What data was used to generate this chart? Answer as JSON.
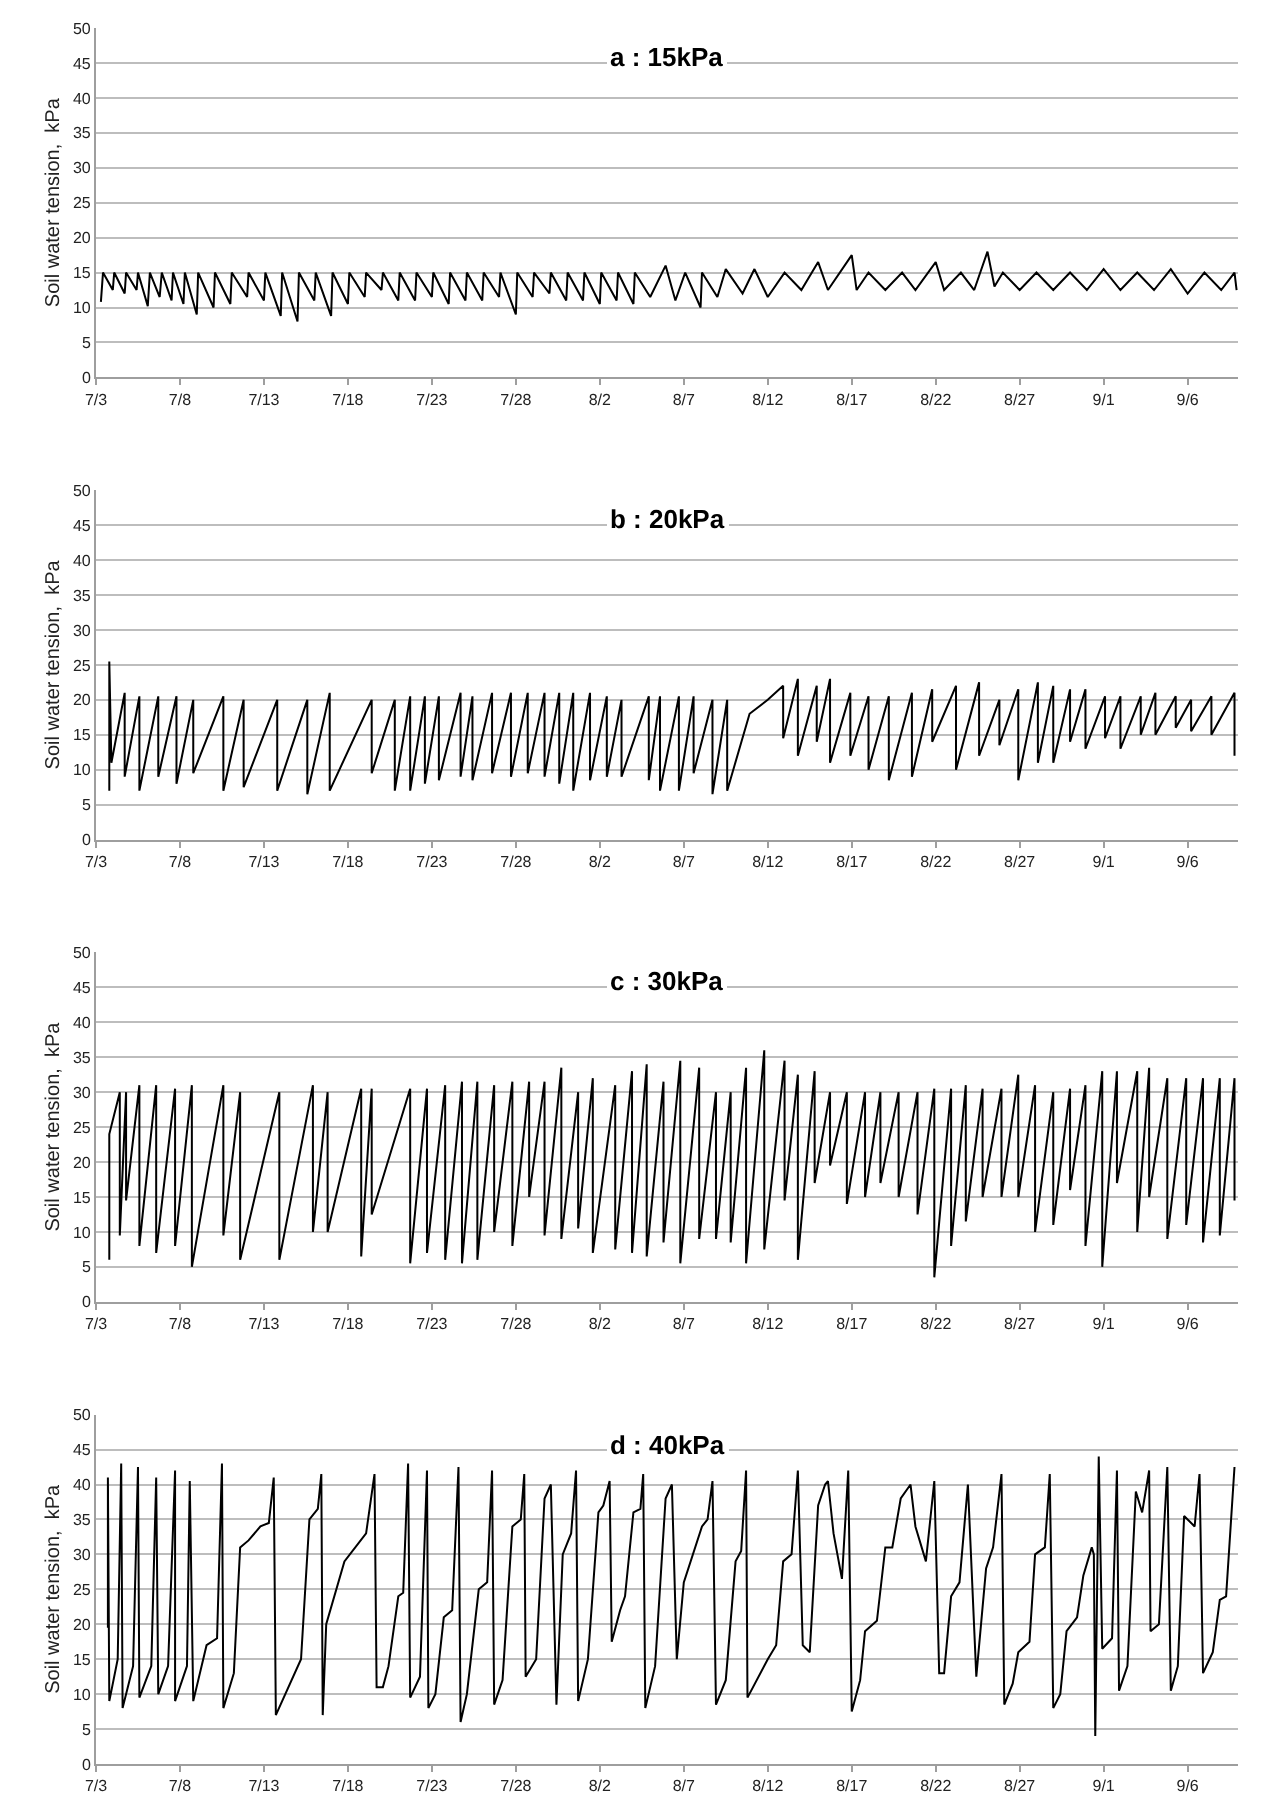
{
  "chart_data": [
    {
      "type": "line",
      "title": "a : 15kPa",
      "ylabel": "Soil water tension,  kPa",
      "xlim": [
        "--07-03",
        "--09-09"
      ],
      "ylim": [
        0,
        50
      ],
      "grid": "y",
      "xticks": [
        {
          "value": "--07-03",
          "label": "7/3"
        },
        {
          "value": "--07-08",
          "label": "7/8"
        },
        {
          "value": "--07-13",
          "label": "7/13"
        },
        {
          "value": "--07-18",
          "label": "7/18"
        },
        {
          "value": "--07-23",
          "label": "7/23"
        },
        {
          "value": "--07-28",
          "label": "7/28"
        },
        {
          "value": "--08-02",
          "label": "8/2"
        },
        {
          "value": "--08-07",
          "label": "8/7"
        },
        {
          "value": "--08-12",
          "label": "8/12"
        },
        {
          "value": "--08-17",
          "label": "8/17"
        },
        {
          "value": "--08-22",
          "label": "8/22"
        },
        {
          "value": "--08-27",
          "label": "8/27"
        },
        {
          "value": "--09-01",
          "label": "9/1"
        },
        {
          "value": "--09-06",
          "label": "9/6"
        }
      ],
      "yticks": [
        0,
        5,
        10,
        15,
        20,
        25,
        30,
        35,
        40,
        45,
        50
      ],
      "x": [
        "--07-03T07:00",
        "--07-03T10:00",
        "--07-04T00:00",
        "--07-04T02:00",
        "--07-04T17:00",
        "--07-04T19:00",
        "--07-05T10:00",
        "--07-05T12:00",
        "--07-06T02:00",
        "--07-06T05:00",
        "--07-06T19:00",
        "--07-06T22:00",
        "--07-07T12:00",
        "--07-07T14:00",
        "--07-08T05:00",
        "--07-08T07:00",
        "--07-09T00:00",
        "--07-09T02:00",
        "--07-10T00:00",
        "--07-10T02:00",
        "--07-11T00:00",
        "--07-11T02:00",
        "--07-12T00:00",
        "--07-12T02:00",
        "--07-13T00:00",
        "--07-13T02:00",
        "--07-14T00:00",
        "--07-14T02:00",
        "--07-15T00:00",
        "--07-15T02:00",
        "--07-16T00:00",
        "--07-16T02:00",
        "--07-17T00:00",
        "--07-17T02:00",
        "--07-18T00:00",
        "--07-18T02:00",
        "--07-19T00:00",
        "--07-19T02:00",
        "--07-20T00:00",
        "--07-20T02:00",
        "--07-21T00:00",
        "--07-21T02:00",
        "--07-22T00:00",
        "--07-22T02:00",
        "--07-23T00:00",
        "--07-23T02:00",
        "--07-24T00:00",
        "--07-24T02:00",
        "--07-25T00:00",
        "--07-25T02:00",
        "--07-26T00:00",
        "--07-26T02:00",
        "--07-27T00:00",
        "--07-27T02:00",
        "--07-28T00:00",
        "--07-28T02:00",
        "--07-29T00:00",
        "--07-29T02:00",
        "--07-30T00:00",
        "--07-30T02:00",
        "--07-31T00:00",
        "--07-31T02:00",
        "--08-01T00:00",
        "--08-01T02:00",
        "--08-02T00:00",
        "--08-02T02:00",
        "--08-03T00:00",
        "--08-03T02:00",
        "--08-04T00:00",
        "--08-04T02:00",
        "--08-05T00:00",
        "--08-05T22:00",
        "--08-06T12:00",
        "--08-07T02:00",
        "--08-08T00:00",
        "--08-08T02:00",
        "--08-09T00:00",
        "--08-09T12:00",
        "--08-10T12:00",
        "--08-11T05:00",
        "--08-12T00:00",
        "--08-13T00:00",
        "--08-14T00:00",
        "--08-15T00:00",
        "--08-15T14:00",
        "--08-17T00:00",
        "--08-17T07:00",
        "--08-18T00:00",
        "--08-19T00:00",
        "--08-20T00:00",
        "--08-20T19:00",
        "--08-22T00:00",
        "--08-22T12:00",
        "--08-23T12:00",
        "--08-24T07:00",
        "--08-25T02:00",
        "--08-25T12:00",
        "--08-26T00:00",
        "--08-27T00:00",
        "--08-28T00:00",
        "--08-29T00:00",
        "--08-30T00:00",
        "--08-31T00:00",
        "--09-01T00:00",
        "--09-02T00:00",
        "--09-03T00:00",
        "--09-04T00:00",
        "--09-05T00:00",
        "--09-06T00:00",
        "--09-07T00:00",
        "--09-08T00:00",
        "--09-08T19:00",
        "--09-08T22:00"
      ],
      "series": [
        {
          "color": "#000000",
          "values": [
            10.8,
            15,
            12.5,
            15,
            12,
            15,
            12.5,
            15,
            10.2,
            15,
            11.5,
            15,
            11,
            15,
            10.5,
            15,
            9,
            15,
            10,
            15,
            10.5,
            15,
            11.5,
            15,
            11,
            15,
            8.8,
            15,
            8,
            15,
            11,
            15,
            8.8,
            15,
            10.5,
            15,
            11.5,
            15,
            12.5,
            15,
            11,
            15,
            11,
            15,
            11.5,
            15,
            10.5,
            15,
            11,
            15,
            11,
            15,
            11.5,
            15,
            9,
            15,
            11.5,
            15,
            12,
            15,
            11,
            15,
            11,
            15,
            10.5,
            15,
            11,
            15,
            10.5,
            15,
            11.5,
            16,
            11,
            15,
            10,
            15,
            11.5,
            15.5,
            12,
            15.5,
            11.5,
            15,
            12.5,
            16.5,
            12.5,
            17.5,
            12.5,
            15,
            12.5,
            15,
            12.5,
            16.5,
            12.5,
            15,
            12.5,
            18,
            13,
            15,
            12.5,
            15,
            12.5,
            15,
            12.5,
            15.5,
            12.5,
            15,
            12.5,
            15.5,
            12,
            15,
            12.5,
            15,
            12.5
          ]
        }
      ]
    },
    {
      "type": "line",
      "title": "b : 20kPa",
      "ylabel": "Soil water tension,  kPa",
      "xlim": [
        "--07-03",
        "--09-09"
      ],
      "ylim": [
        0,
        50
      ],
      "grid": "y",
      "xticks": [
        {
          "value": "--07-03",
          "label": "7/3"
        },
        {
          "value": "--07-08",
          "label": "7/8"
        },
        {
          "value": "--07-13",
          "label": "7/13"
        },
        {
          "value": "--07-18",
          "label": "7/18"
        },
        {
          "value": "--07-23",
          "label": "7/23"
        },
        {
          "value": "--07-28",
          "label": "7/28"
        },
        {
          "value": "--08-02",
          "label": "8/2"
        },
        {
          "value": "--08-07",
          "label": "8/7"
        },
        {
          "value": "--08-12",
          "label": "8/12"
        },
        {
          "value": "--08-17",
          "label": "8/17"
        },
        {
          "value": "--08-22",
          "label": "8/22"
        },
        {
          "value": "--08-27",
          "label": "8/27"
        },
        {
          "value": "--09-01",
          "label": "9/1"
        },
        {
          "value": "--09-06",
          "label": "9/6"
        }
      ],
      "yticks": [
        0,
        5,
        10,
        15,
        20,
        25,
        30,
        35,
        40,
        45,
        50
      ],
      "x": [
        "--07-03T19:00",
        "--07-03T19:00",
        "--07-03T22:00",
        "--07-04T17:00",
        "--07-04T17:00",
        "--07-05T14:00",
        "--07-05T14:00",
        "--07-06T17:00",
        "--07-06T17:00",
        "--07-07T19:00",
        "--07-07T19:00",
        "--07-08T19:00",
        "--07-08T19:00",
        "--07-10T14:00",
        "--07-10T14:00",
        "--07-11T19:00",
        "--07-11T19:00",
        "--07-13T19:00",
        "--07-13T19:00",
        "--07-15T14:00",
        "--07-15T14:00",
        "--07-16T22:00",
        "--07-16T22:00",
        "--07-19T10:00",
        "--07-19T10:00",
        "--07-20T19:00",
        "--07-20T19:00",
        "--07-21T17:00",
        "--07-21T17:00",
        "--07-22T14:00",
        "--07-22T14:00",
        "--07-23T10:00",
        "--07-23T10:00",
        "--07-24T17:00",
        "--07-24T17:00",
        "--07-25T10:00",
        "--07-25T10:00",
        "--07-26T14:00",
        "--07-26T14:00",
        "--07-27T17:00",
        "--07-27T17:00",
        "--07-28T17:00",
        "--07-28T17:00",
        "--07-29T17:00",
        "--07-29T17:00",
        "--07-30T14:00",
        "--07-30T14:00",
        "--07-31T10:00",
        "--07-31T10:00",
        "--08-01T10:00",
        "--08-01T10:00",
        "--08-02T10:00",
        "--08-02T10:00",
        "--08-03T07:00",
        "--08-03T07:00",
        "--08-04T22:00",
        "--08-04T22:00",
        "--08-05T14:00",
        "--08-05T14:00",
        "--08-06T17:00",
        "--08-06T17:00",
        "--08-07T14:00",
        "--08-07T14:00",
        "--08-08T17:00",
        "--08-08T17:00",
        "--08-09T14:00",
        "--08-09T14:00",
        "--08-10T22:00",
        "--08-12T00:00",
        "--08-12T22:00",
        "--08-12T22:00",
        "--08-13T19:00",
        "--08-13T19:00",
        "--08-14T22:00",
        "--08-14T22:00",
        "--08-15T17:00",
        "--08-15T17:00",
        "--08-16T22:00",
        "--08-16T22:00",
        "--08-18T00:00",
        "--08-18T00:00",
        "--08-19T05:00",
        "--08-19T05:00",
        "--08-20T14:00",
        "--08-20T14:00",
        "--08-21T19:00",
        "--08-21T19:00",
        "--08-23T05:00",
        "--08-23T05:00",
        "--08-24T14:00",
        "--08-24T14:00",
        "--08-25T19:00",
        "--08-25T19:00",
        "--08-26T22:00",
        "--08-26T22:00",
        "--08-28T02:00",
        "--08-28T02:00",
        "--08-29T00:00",
        "--08-29T00:00",
        "--08-30T00:00",
        "--08-30T00:00",
        "--08-30T22:00",
        "--08-30T22:00",
        "--09-01T02:00",
        "--09-01T02:00",
        "--09-02T00:00",
        "--09-02T00:00",
        "--09-03T05:00",
        "--09-03T05:00",
        "--09-04T02:00",
        "--09-04T02:00",
        "--09-05T07:00",
        "--09-05T07:00",
        "--09-06T05:00",
        "--09-06T05:00",
        "--09-07T10:00",
        "--09-07T10:00",
        "--09-08T19:00",
        "--09-08T19:00"
      ],
      "series": [
        {
          "color": "#000000",
          "values": [
            7,
            25.5,
            11,
            21,
            9,
            20.5,
            7,
            20.5,
            9,
            20.5,
            8,
            20,
            9.5,
            20.5,
            7,
            20,
            7.5,
            20,
            7,
            20,
            6.5,
            21,
            7,
            20,
            9.5,
            20,
            7,
            20.5,
            7,
            20.5,
            8,
            20.5,
            8.5,
            21,
            9,
            20.5,
            8.5,
            21,
            9.5,
            21,
            9,
            21,
            9.5,
            21,
            9,
            21,
            8,
            21,
            7,
            21,
            8.5,
            20.5,
            9,
            20,
            9,
            20.5,
            8.5,
            20.5,
            7,
            20.5,
            7,
            20.5,
            9.5,
            20,
            6.5,
            20,
            7,
            18,
            20,
            22,
            14.5,
            23,
            12,
            22,
            14,
            23,
            11,
            21,
            12,
            20.5,
            10,
            20.5,
            8.5,
            21,
            9,
            21.5,
            14,
            22,
            10,
            22.5,
            12,
            20,
            13.5,
            21.5,
            8.5,
            22.5,
            11,
            22,
            11,
            21.5,
            14,
            21.5,
            13,
            20.5,
            14.5,
            20.5,
            13,
            20.5,
            15,
            21,
            15,
            20.5,
            16,
            20,
            15.5,
            20.5,
            15,
            21,
            12
          ]
        }
      ]
    },
    {
      "type": "line",
      "title": "c : 30kPa",
      "ylabel": "Soil water tension,  kPa",
      "xlim": [
        "--07-03",
        "--09-09"
      ],
      "ylim": [
        0,
        50
      ],
      "grid": "y",
      "xticks": [
        {
          "value": "--07-03",
          "label": "7/3"
        },
        {
          "value": "--07-08",
          "label": "7/8"
        },
        {
          "value": "--07-13",
          "label": "7/13"
        },
        {
          "value": "--07-18",
          "label": "7/18"
        },
        {
          "value": "--07-23",
          "label": "7/23"
        },
        {
          "value": "--07-28",
          "label": "7/28"
        },
        {
          "value": "--08-02",
          "label": "8/2"
        },
        {
          "value": "--08-07",
          "label": "8/7"
        },
        {
          "value": "--08-12",
          "label": "8/12"
        },
        {
          "value": "--08-17",
          "label": "8/17"
        },
        {
          "value": "--08-22",
          "label": "8/22"
        },
        {
          "value": "--08-27",
          "label": "8/27"
        },
        {
          "value": "--09-01",
          "label": "9/1"
        },
        {
          "value": "--09-06",
          "label": "9/6"
        }
      ],
      "yticks": [
        0,
        5,
        10,
        15,
        20,
        25,
        30,
        35,
        40,
        45,
        50
      ],
      "x": [
        "--07-03T19:00",
        "--07-03T19:00",
        "--07-04T10:00",
        "--07-04T10:00",
        "--07-04T19:00",
        "--07-04T19:00",
        "--07-05T14:00",
        "--07-05T14:00",
        "--07-06T14:00",
        "--07-06T14:00",
        "--07-07T17:00",
        "--07-07T17:00",
        "--07-08T17:00",
        "--07-08T17:00",
        "--07-10T14:00",
        "--07-10T14:00",
        "--07-11T14:00",
        "--07-11T14:00",
        "--07-13T22:00",
        "--07-13T22:00",
        "--07-15T22:00",
        "--07-15T22:00",
        "--07-16T19:00",
        "--07-16T19:00",
        "--07-18T19:00",
        "--07-18T19:00",
        "--07-19T10:00",
        "--07-19T10:00",
        "--07-21T17:00",
        "--07-21T17:00",
        "--07-22T17:00",
        "--07-22T17:00",
        "--07-23T19:00",
        "--07-23T19:00",
        "--07-24T19:00",
        "--07-24T19:00",
        "--07-25T17:00",
        "--07-25T17:00",
        "--07-26T17:00",
        "--07-26T17:00",
        "--07-27T19:00",
        "--07-27T19:00",
        "--07-28T19:00",
        "--07-28T19:00",
        "--07-29T17:00",
        "--07-29T17:00",
        "--07-30T17:00",
        "--07-30T17:00",
        "--07-31T17:00",
        "--07-31T17:00",
        "--08-01T14:00",
        "--08-01T14:00",
        "--08-02T22:00",
        "--08-02T22:00",
        "--08-03T22:00",
        "--08-03T22:00",
        "--08-04T19:00",
        "--08-04T19:00",
        "--08-05T19:00",
        "--08-05T19:00",
        "--08-06T19:00",
        "--08-06T19:00",
        "--08-07T22:00",
        "--08-07T22:00",
        "--08-08T22:00",
        "--08-08T22:00",
        "--08-09T19:00",
        "--08-09T19:00",
        "--08-10T17:00",
        "--08-10T17:00",
        "--08-11T19:00",
        "--08-11T19:00",
        "--08-13T00:00",
        "--08-13T00:00",
        "--08-13T19:00",
        "--08-13T19:00",
        "--08-14T19:00",
        "--08-14T19:00",
        "--08-15T17:00",
        "--08-15T17:00",
        "--08-16T17:00",
        "--08-16T17:00",
        "--08-17T19:00",
        "--08-17T19:00",
        "--08-18T17:00",
        "--08-18T17:00",
        "--08-19T19:00",
        "--08-19T19:00",
        "--08-20T22:00",
        "--08-20T22:00",
        "--08-21T22:00",
        "--08-21T22:00",
        "--08-22T22:00",
        "--08-22T22:00",
        "--08-23T19:00",
        "--08-23T19:00",
        "--08-24T19:00",
        "--08-24T19:00",
        "--08-25T22:00",
        "--08-25T22:00",
        "--08-26T22:00",
        "--08-26T22:00",
        "--08-27T22:00",
        "--08-27T22:00",
        "--08-29T00:00",
        "--08-29T00:00",
        "--08-30T00:00",
        "--08-30T00:00",
        "--08-30T22:00",
        "--08-30T22:00",
        "--08-31T22:00",
        "--08-31T22:00",
        "--09-01T19:00",
        "--09-01T19:00",
        "--09-03T00:00",
        "--09-03T00:00",
        "--09-03T17:00",
        "--09-03T17:00",
        "--09-04T19:00",
        "--09-04T19:00",
        "--09-05T22:00",
        "--09-05T22:00",
        "--09-06T22:00",
        "--09-06T22:00",
        "--09-07T22:00",
        "--09-07T22:00",
        "--09-08T19:00",
        "--09-08T19:00"
      ],
      "series": [
        {
          "color": "#000000",
          "values": [
            6,
            24,
            30,
            9.5,
            30,
            14.5,
            31,
            8,
            31,
            7,
            30.5,
            8,
            31,
            5,
            31,
            9.5,
            30,
            6,
            30,
            6,
            31,
            10,
            30,
            10,
            30.5,
            6.5,
            30.5,
            12.5,
            30.5,
            5.5,
            30.5,
            7,
            31,
            6,
            31.5,
            5.5,
            31.5,
            6,
            31,
            10,
            31.5,
            8,
            31.5,
            15,
            31.5,
            9.5,
            33.5,
            9,
            30,
            10.5,
            32,
            7,
            31,
            7.5,
            33,
            7,
            34,
            6.5,
            31.5,
            8.5,
            34.5,
            5.5,
            33.5,
            9,
            30,
            9,
            30,
            8.5,
            33.5,
            5.5,
            36,
            7.5,
            34.5,
            14.5,
            32.5,
            6,
            33,
            17,
            30,
            19.5,
            30,
            14,
            30,
            15,
            30,
            17,
            30,
            15,
            30,
            12.5,
            30.5,
            3.5,
            30.5,
            8,
            31,
            11.5,
            30.5,
            15,
            30.5,
            15,
            32.5,
            15,
            31,
            10,
            30,
            11,
            30.5,
            16,
            31,
            8,
            33,
            5,
            33,
            17,
            33,
            10,
            33.5,
            15,
            32,
            9,
            32,
            11,
            32,
            8.5,
            32,
            9.5,
            32,
            14.5
          ]
        }
      ]
    },
    {
      "type": "line",
      "title": "d : 40kPa",
      "ylabel": "Soil water tension,  kPa",
      "xlim": [
        "--07-03",
        "--09-09"
      ],
      "ylim": [
        0,
        50
      ],
      "grid": "y",
      "xticks": [
        {
          "value": "--07-03",
          "label": "7/3"
        },
        {
          "value": "--07-08",
          "label": "7/8"
        },
        {
          "value": "--07-13",
          "label": "7/13"
        },
        {
          "value": "--07-18",
          "label": "7/18"
        },
        {
          "value": "--07-23",
          "label": "7/23"
        },
        {
          "value": "--07-28",
          "label": "7/28"
        },
        {
          "value": "--08-02",
          "label": "8/2"
        },
        {
          "value": "--08-07",
          "label": "8/7"
        },
        {
          "value": "--08-12",
          "label": "8/12"
        },
        {
          "value": "--08-17",
          "label": "8/17"
        },
        {
          "value": "--08-22",
          "label": "8/22"
        },
        {
          "value": "--08-27",
          "label": "8/27"
        },
        {
          "value": "--09-01",
          "label": "9/1"
        },
        {
          "value": "--09-06",
          "label": "9/6"
        }
      ],
      "yticks": [
        0,
        5,
        10,
        15,
        20,
        25,
        30,
        35,
        40,
        45,
        50
      ],
      "x": [
        "--07-03T17:00",
        "--07-03T17:00",
        "--07-03T19:00",
        "--07-04T07:00",
        "--07-04T12:00",
        "--07-04T14:00",
        "--07-05T05:00",
        "--07-05T12:00",
        "--07-05T14:00",
        "--07-06T07:00",
        "--07-06T14:00",
        "--07-06T17:00",
        "--07-07T07:00",
        "--07-07T17:00",
        "--07-07T17:00",
        "--07-08T10:00",
        "--07-08T14:00",
        "--07-08T19:00",
        "--07-09T14:00",
        "--07-10T05:00",
        "--07-10T12:00",
        "--07-10T14:00",
        "--07-11T05:00",
        "--07-11T14:00",
        "--07-12T02:00",
        "--07-12T19:00",
        "--07-13T07:00",
        "--07-13T14:00",
        "--07-13T17:00",
        "--07-15T05:00",
        "--07-15T17:00",
        "--07-16T05:00",
        "--07-16T10:00",
        "--07-16T12:00",
        "--07-16T17:00",
        "--07-17T19:00",
        "--07-19T02:00",
        "--07-19T14:00",
        "--07-19T17:00",
        "--07-20T02:00",
        "--07-20T10:00",
        "--07-21T00:00",
        "--07-21T07:00",
        "--07-21T14:00",
        "--07-21T17:00",
        "--07-22T07:00",
        "--07-22T17:00",
        "--07-22T19:00",
        "--07-23T05:00",
        "--07-23T17:00",
        "--07-24T05:00",
        "--07-24T14:00",
        "--07-24T17:00",
        "--07-25T02:00",
        "--07-25T19:00",
        "--07-26T07:00",
        "--07-26T14:00",
        "--07-26T17:00",
        "--07-27T05:00",
        "--07-27T19:00",
        "--07-28T07:00",
        "--07-28T12:00",
        "--07-28T14:00",
        "--07-29T05:00",
        "--07-29T17:00",
        "--07-30T02:00",
        "--07-30T10:00",
        "--07-30T19:00",
        "--07-31T07:00",
        "--07-31T14:00",
        "--07-31T17:00",
        "--08-01T07:00",
        "--08-01T22:00",
        "--08-02T05:00",
        "--08-02T14:00",
        "--08-02T17:00",
        "--08-03T05:00",
        "--08-03T12:00",
        "--08-04T00:00",
        "--08-04T10:00",
        "--08-04T14:00",
        "--08-04T17:00",
        "--08-05T07:00",
        "--08-05T22:00",
        "--08-06T07:00",
        "--08-06T14:00",
        "--08-07T00:00",
        "--08-08T02:00",
        "--08-08T10:00",
        "--08-08T17:00",
        "--08-08T22:00",
        "--08-09T12:00",
        "--08-10T02:00",
        "--08-10T10:00",
        "--08-10T17:00",
        "--08-10T19:00",
        "--08-12T00:00",
        "--08-12T12:00",
        "--08-12T22:00",
        "--08-13T10:00",
        "--08-13T19:00",
        "--08-14T02:00",
        "--08-14T12:00",
        "--08-15T00:00",
        "--08-15T10:00",
        "--08-15T14:00",
        "--08-15T22:00",
        "--08-16T10:00",
        "--08-16T19:00",
        "--08-17T00:00",
        "--08-17T12:00",
        "--08-17T19:00",
        "--08-18T12:00",
        "--08-19T00:00",
        "--08-19T10:00",
        "--08-19T22:00",
        "--08-20T12:00",
        "--08-20T19:00",
        "--08-21T10:00",
        "--08-21T22:00",
        "--08-22T05:00",
        "--08-22T12:00",
        "--08-22T22:00",
        "--08-23T10:00",
        "--08-23T22:00",
        "--08-24T10:00",
        "--08-25T00:00",
        "--08-25T10:00",
        "--08-25T22:00",
        "--08-26T02:00",
        "--08-26T14:00",
        "--08-26T22:00",
        "--08-27T14:00",
        "--08-27T22:00",
        "--08-28T12:00",
        "--08-28T19:00",
        "--08-29T00:00",
        "--08-29T10:00",
        "--08-29T19:00",
        "--08-30T10:00",
        "--08-30T19:00",
        "--08-31T07:00",
        "--08-31T10:00",
        "--08-31T12:00",
        "--08-31T17:00",
        "--08-31T22:00",
        "--09-01T12:00",
        "--09-01T19:00",
        "--09-01T22:00",
        "--09-02T10:00",
        "--09-02T22:00",
        "--09-03T07:00",
        "--09-03T17:00",
        "--09-03T19:00",
        "--09-04T07:00",
        "--09-04T19:00",
        "--09-05T00:00",
        "--09-05T10:00",
        "--09-05T19:00",
        "--09-06T10:00",
        "--09-06T17:00",
        "--09-06T22:00",
        "--09-07T12:00",
        "--09-07T22:00",
        "--09-08T07:00",
        "--09-08T19:00"
      ],
      "series": [
        {
          "color": "#000000",
          "values": [
            19.5,
            41,
            9,
            15,
            43,
            8,
            14,
            42.5,
            9.5,
            14,
            41,
            10,
            14,
            42,
            9,
            14,
            40.5,
            9,
            17,
            18,
            43,
            8,
            13,
            31,
            32,
            34,
            34.5,
            41,
            7,
            15,
            35,
            36.5,
            41.5,
            7,
            20,
            29,
            33,
            41.5,
            11,
            11,
            14,
            24,
            24.5,
            43,
            9.5,
            12.5,
            42,
            8,
            10,
            21,
            22,
            42.5,
            6,
            10,
            25,
            26,
            42,
            8.5,
            12,
            34,
            35,
            41.5,
            12.5,
            15,
            38,
            40,
            8.5,
            30,
            33,
            42,
            9,
            15,
            36,
            37,
            40.5,
            17.5,
            22,
            24,
            36,
            36.5,
            41.5,
            8,
            14,
            38,
            40,
            15,
            26,
            34,
            35,
            40.5,
            8.5,
            12,
            29,
            30.5,
            42,
            9.5,
            15,
            17,
            29,
            30,
            42,
            17,
            16,
            37,
            40,
            40.5,
            33,
            26.5,
            42,
            7.5,
            12,
            19,
            20.5,
            31,
            31,
            38,
            40,
            34,
            29,
            40.5,
            13,
            13,
            24,
            26,
            40,
            12.5,
            28,
            31,
            41.5,
            8.5,
            11.5,
            16,
            17.5,
            30,
            31,
            41.5,
            8,
            10,
            19,
            21,
            27,
            31,
            30,
            4,
            44,
            16.5,
            18,
            42,
            10.5,
            14,
            39,
            36,
            42,
            19,
            20,
            42.5,
            10.5,
            14,
            35.5,
            34,
            41.5,
            13,
            16,
            23.5,
            24,
            42.5
          ]
        }
      ]
    }
  ]
}
